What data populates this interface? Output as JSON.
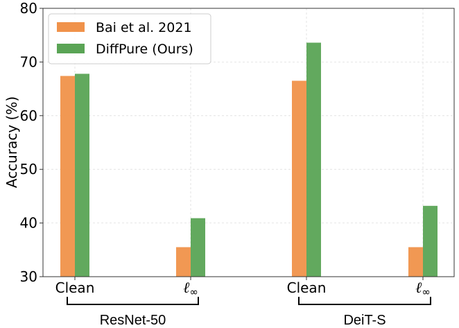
{
  "chart_data": {
    "type": "bar",
    "categories": [
      "Clean",
      "ℓ∞",
      "Clean",
      "ℓ∞"
    ],
    "groups": [
      {
        "label": "ResNet-50",
        "categories": [
          0,
          1
        ]
      },
      {
        "label": "DeiT-S",
        "categories": [
          2,
          3
        ]
      }
    ],
    "series": [
      {
        "name": "Bai et al. 2021",
        "color": "#f0924a",
        "values": [
          67.4,
          35.5,
          66.5,
          35.5
        ]
      },
      {
        "name": "DiffPure (Ours)",
        "color": "#5aa455",
        "values": [
          67.8,
          40.9,
          73.6,
          43.2
        ]
      }
    ],
    "ylabel": "Accuracy (%)",
    "ylim": [
      30,
      80
    ],
    "yticks": [
      30,
      40,
      50,
      60,
      70,
      80
    ],
    "grid": true,
    "legend": "top-left"
  }
}
